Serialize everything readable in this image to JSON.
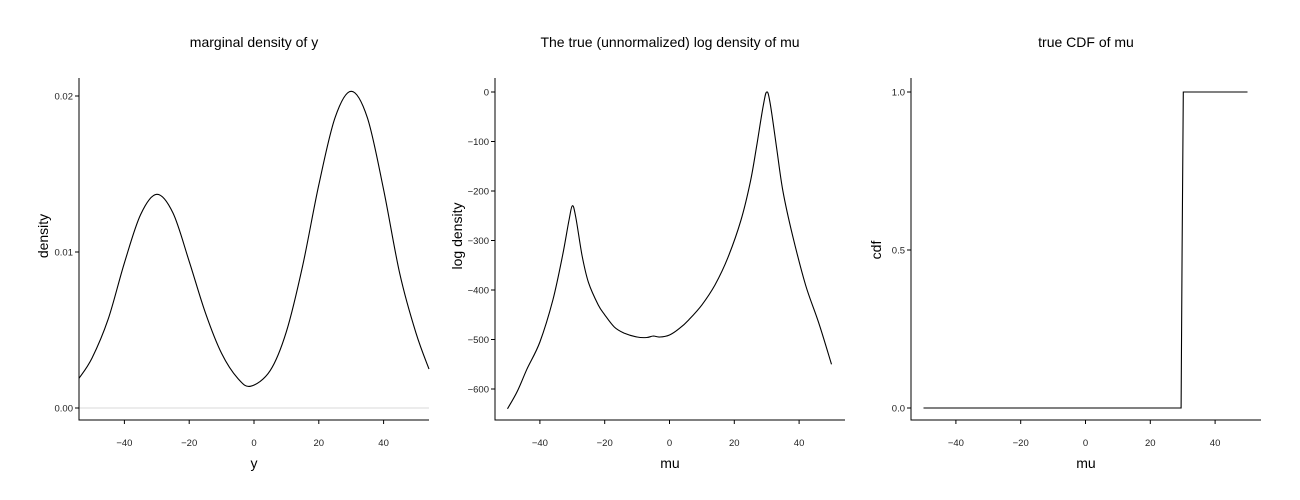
{
  "chart_data": [
    {
      "type": "line",
      "title": "marginal density of y",
      "xlabel": "y",
      "ylabel": "density",
      "xlim": [
        -54,
        54
      ],
      "ylim": [
        -0.0008,
        0.0212
      ],
      "xticks": [
        -40,
        -20,
        0,
        20,
        40
      ],
      "xtick_labels": [
        "−40",
        "−20",
        "0",
        "20",
        "40"
      ],
      "yticks": [
        0.0,
        0.01,
        0.02
      ],
      "ytick_labels": [
        "0.00",
        "0.01",
        "0.02"
      ],
      "hline": 0,
      "grid": false,
      "series": [
        {
          "name": "density",
          "x": [
            -54,
            -50,
            -45,
            -40,
            -35,
            -30,
            -25,
            -20,
            -15,
            -10,
            -5,
            -1,
            5,
            10,
            15,
            20,
            25,
            30,
            35,
            40,
            45,
            50,
            54
          ],
          "y": [
            0.0019,
            0.0032,
            0.0057,
            0.0093,
            0.0124,
            0.0137,
            0.0125,
            0.0094,
            0.0061,
            0.0035,
            0.0019,
            0.0014,
            0.0024,
            0.0049,
            0.0091,
            0.0143,
            0.0186,
            0.0203,
            0.0186,
            0.014,
            0.0086,
            0.0048,
            0.0025
          ]
        }
      ]
    },
    {
      "type": "line",
      "title": "The true (unnormalized) log density of mu",
      "xlabel": "mu",
      "ylabel": "log density",
      "xlim": [
        -54,
        54
      ],
      "ylim": [
        -660,
        20
      ],
      "xticks": [
        -40,
        -20,
        0,
        20,
        40
      ],
      "xtick_labels": [
        "−40",
        "−20",
        "0",
        "20",
        "40"
      ],
      "yticks": [
        0,
        -100,
        -200,
        -300,
        -400,
        -500,
        -600
      ],
      "ytick_labels": [
        "0",
        "−100",
        "−200",
        "−300",
        "−400",
        "−500",
        "−600"
      ],
      "grid": false,
      "series": [
        {
          "name": "log density",
          "x": [
            -50,
            -47,
            -44,
            -40,
            -36,
            -33,
            -31,
            -30,
            -29,
            -27,
            -25,
            -22,
            -20,
            -17,
            -14,
            -10,
            -7,
            -5,
            -3,
            0,
            3,
            6,
            10,
            14,
            18,
            22,
            25,
            27,
            29,
            30,
            31,
            33,
            35,
            38,
            42,
            46,
            50
          ],
          "y": [
            -640,
            -605,
            -560,
            -505,
            -420,
            -330,
            -258,
            -230,
            -250,
            -330,
            -385,
            -430,
            -450,
            -475,
            -487,
            -495,
            -496,
            -493,
            -495,
            -491,
            -478,
            -460,
            -430,
            -390,
            -335,
            -260,
            -180,
            -105,
            -25,
            0,
            -20,
            -110,
            -200,
            -290,
            -390,
            -465,
            -550
          ]
        }
      ]
    },
    {
      "type": "line",
      "title": "true CDF of mu",
      "xlabel": "mu",
      "ylabel": "cdf",
      "xlim": [
        -54,
        54
      ],
      "ylim": [
        -0.05,
        1.05
      ],
      "xticks": [
        -40,
        -20,
        0,
        20,
        40
      ],
      "xtick_labels": [
        "−40",
        "−20",
        "0",
        "20",
        "40"
      ],
      "yticks": [
        0.0,
        0.5,
        1.0
      ],
      "ytick_labels": [
        "0.0",
        "0.5",
        "1.0"
      ],
      "grid": false,
      "series": [
        {
          "name": "cdf",
          "x": [
            -50,
            29.5,
            29.8,
            30.2,
            50
          ],
          "y": [
            0.0,
            0.0,
            0.5,
            1.0,
            1.0
          ]
        }
      ]
    }
  ],
  "panels": [
    {
      "title": "marginal density of y",
      "xlabel": "y",
      "ylabel": "density"
    },
    {
      "title": "The true (unnormalized) log density of mu",
      "xlabel": "mu",
      "ylabel": "log density"
    },
    {
      "title": "true CDF of mu",
      "xlabel": "mu",
      "ylabel": "cdf"
    }
  ]
}
